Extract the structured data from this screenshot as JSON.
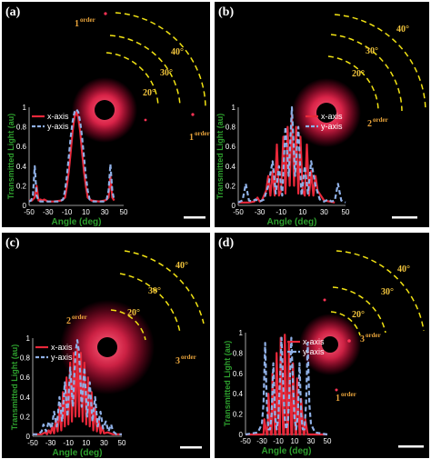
{
  "colors": {
    "x_series": "#e8283a",
    "y_series": "#8fb0e6",
    "axis_text": "#2ea02e",
    "arc": "#f2e313",
    "order_label": "#e7a33b",
    "glow": "#ff3355"
  },
  "panels": [
    {
      "label": "(a)",
      "angle_labels": [
        "40°",
        "30°",
        "20°"
      ],
      "order_labels": [
        {
          "num": "1",
          "sup": "order"
        },
        {
          "num": "1",
          "sup": "order"
        }
      ],
      "legend": [
        "x-axis",
        "y-axis"
      ],
      "ylabel": "Transmitted Light (au)",
      "xlabel": "Angle (deg)",
      "xticks": [
        "-50",
        "-30",
        "-10",
        "10",
        "30",
        "50"
      ],
      "yticks": [
        "0",
        "0.2",
        "0.4",
        "0.6",
        "0.8",
        "1"
      ]
    },
    {
      "label": "(b)",
      "angle_labels": [
        "40°",
        "30°",
        "20°"
      ],
      "order_labels": [
        {
          "num": "2",
          "sup": "order"
        }
      ],
      "legend": [
        "x-axis",
        "y-axis"
      ],
      "ylabel": "Transmitted Light (au)",
      "xlabel": "Angle (deg)",
      "xticks": [
        "-50",
        "-30",
        "-10",
        "10",
        "30",
        "50"
      ],
      "yticks": [
        "0",
        "0.2",
        "0.4",
        "0.6",
        "0.8",
        "1"
      ]
    },
    {
      "label": "(c)",
      "angle_labels": [
        "40°",
        "30°",
        "20°"
      ],
      "order_labels": [
        {
          "num": "2",
          "sup": "order"
        },
        {
          "num": "3",
          "sup": "order"
        }
      ],
      "legend": [
        "x-axis",
        "y-axis"
      ],
      "ylabel": "Transmitted Light (au)",
      "xlabel": "Angle (deg)",
      "xticks": [
        "-50",
        "-30",
        "-10",
        "10",
        "30",
        "50"
      ],
      "yticks": [
        "0",
        "0.2",
        "0.4",
        "0.6",
        "0.8",
        "1"
      ]
    },
    {
      "label": "(d)",
      "angle_labels": [
        "40°",
        "30°",
        "20°"
      ],
      "order_labels": [
        {
          "num": "3",
          "sup": "order"
        },
        {
          "num": "1",
          "sup": "order"
        }
      ],
      "legend": [
        "x-axis",
        "y-axis"
      ],
      "ylabel": "Transmitted Light (au)",
      "xlabel": "Angle (deg)",
      "xticks": [
        "-50",
        "-30",
        "-10",
        "10",
        "30",
        "50"
      ],
      "yticks": [
        "0",
        "0.2",
        "0.4",
        "0.6",
        "0.8",
        "1"
      ]
    }
  ],
  "chart_data": [
    {
      "type": "line",
      "panel": "(a)",
      "xlabel": "Angle (deg)",
      "ylabel": "Transmitted Light (au)",
      "xlim": [
        -50,
        50
      ],
      "ylim": [
        0,
        1
      ],
      "legend_placement": "top-left",
      "series": [
        {
          "name": "x-axis",
          "x": [
            -50,
            -47,
            -44,
            -42,
            -40,
            -38,
            -36,
            -34,
            -30,
            -24,
            -16,
            -12,
            -10,
            -8,
            -6,
            -4,
            -2,
            0,
            2,
            4,
            6,
            8,
            10,
            12,
            16,
            24,
            30,
            32,
            34,
            36,
            38,
            40
          ],
          "y": [
            0.05,
            0.05,
            0.08,
            0.2,
            0.05,
            0.06,
            0.05,
            0.06,
            0.04,
            0.04,
            0.05,
            0.08,
            0.2,
            0.35,
            0.55,
            0.75,
            0.9,
            0.95,
            0.9,
            0.75,
            0.55,
            0.35,
            0.2,
            0.08,
            0.05,
            0.04,
            0.05,
            0.06,
            0.08,
            0.3,
            0.08,
            0.05
          ]
        },
        {
          "name": "y-axis",
          "x": [
            -50,
            -48,
            -46,
            -44,
            -42,
            -40,
            -38,
            -36,
            -30,
            -24,
            -18,
            -14,
            -12,
            -10,
            -8,
            -6,
            -4,
            -2,
            0,
            2,
            4,
            6,
            8,
            10,
            12,
            14,
            18,
            24,
            30,
            32,
            34,
            36,
            38,
            40
          ],
          "y": [
            0.04,
            0.05,
            0.1,
            0.4,
            0.1,
            0.05,
            0.04,
            0.04,
            0.04,
            0.04,
            0.04,
            0.06,
            0.15,
            0.3,
            0.5,
            0.7,
            0.85,
            0.95,
            0.98,
            0.95,
            0.85,
            0.7,
            0.5,
            0.3,
            0.15,
            0.06,
            0.04,
            0.04,
            0.04,
            0.06,
            0.15,
            0.42,
            0.15,
            0.05
          ]
        }
      ]
    },
    {
      "type": "line",
      "panel": "(b)",
      "xlabel": "Angle (deg)",
      "ylabel": "Transmitted Light (au)",
      "xlim": [
        -50,
        50
      ],
      "ylim": [
        0,
        1
      ],
      "legend_placement": "top-right",
      "series": [
        {
          "name": "x-axis",
          "x": [
            -50,
            -40,
            -35,
            -32,
            -30,
            -28,
            -24,
            -22,
            -20,
            -18,
            -16,
            -14,
            -12,
            -10,
            -8,
            -6,
            -4,
            -2,
            0,
            2,
            4,
            6,
            8,
            10,
            12,
            14,
            16,
            18,
            20,
            22,
            24,
            30,
            35,
            40
          ],
          "y": [
            0.03,
            0.03,
            0.04,
            0.08,
            0.04,
            0.05,
            0.15,
            0.3,
            0.1,
            0.35,
            0.1,
            0.62,
            0.1,
            0.15,
            0.7,
            0.12,
            0.8,
            0.2,
            0.92,
            0.2,
            0.8,
            0.12,
            0.7,
            0.15,
            0.1,
            0.62,
            0.1,
            0.35,
            0.1,
            0.3,
            0.15,
            0.05,
            0.04,
            0.03
          ]
        },
        {
          "name": "y-axis",
          "x": [
            -50,
            -46,
            -43,
            -40,
            -37,
            -34,
            -30,
            -26,
            -22,
            -18,
            -15,
            -12,
            -9,
            -6,
            -3,
            0,
            3,
            6,
            9,
            12,
            15,
            18,
            22,
            26,
            30,
            34,
            37,
            40,
            43,
            46,
            50
          ],
          "y": [
            0.03,
            0.05,
            0.22,
            0.05,
            0.04,
            0.06,
            0.04,
            0.06,
            0.2,
            0.45,
            0.12,
            0.4,
            0.1,
            0.8,
            0.3,
            1.0,
            0.3,
            0.8,
            0.1,
            0.4,
            0.12,
            0.45,
            0.2,
            0.06,
            0.04,
            0.06,
            0.04,
            0.05,
            0.22,
            0.05,
            0.03
          ]
        }
      ]
    },
    {
      "type": "line",
      "panel": "(c)",
      "xlabel": "Angle (deg)",
      "ylabel": "Transmitted Light (au)",
      "xlim": [
        -50,
        50
      ],
      "ylim": [
        0,
        1
      ],
      "legend_placement": "top-left",
      "series": [
        {
          "name": "x-axis",
          "x": [
            -50,
            -40,
            -36,
            -34,
            -32,
            -30,
            -28,
            -26,
            -24,
            -22,
            -20,
            -18,
            -16,
            -14,
            -12,
            -10,
            -8,
            -6,
            -4,
            -2,
            0,
            2,
            4,
            6,
            8,
            10,
            12,
            14,
            16,
            18,
            20,
            22,
            24,
            26,
            28,
            30,
            34,
            40,
            50
          ],
          "y": [
            0.02,
            0.02,
            0.04,
            0.02,
            0.06,
            0.03,
            0.1,
            0.03,
            0.18,
            0.05,
            0.3,
            0.06,
            0.45,
            0.1,
            0.6,
            0.12,
            0.75,
            0.15,
            0.85,
            0.2,
            0.9,
            0.2,
            0.85,
            0.15,
            0.75,
            0.12,
            0.6,
            0.1,
            0.45,
            0.06,
            0.3,
            0.05,
            0.18,
            0.03,
            0.1,
            0.03,
            0.04,
            0.02,
            0.02
          ]
        },
        {
          "name": "y-axis",
          "x": [
            -50,
            -44,
            -40,
            -38,
            -35,
            -32,
            -29,
            -26,
            -23,
            -20,
            -17,
            -14,
            -11,
            -8,
            -5,
            -2,
            0,
            2,
            5,
            8,
            11,
            14,
            17,
            20,
            23,
            26,
            29,
            32,
            35,
            38,
            40,
            44,
            50
          ],
          "y": [
            0.02,
            0.02,
            0.05,
            0.12,
            0.05,
            0.15,
            0.08,
            0.25,
            0.1,
            0.4,
            0.15,
            0.55,
            0.2,
            0.7,
            0.3,
            0.85,
            0.98,
            0.85,
            0.3,
            0.7,
            0.2,
            0.55,
            0.15,
            0.4,
            0.1,
            0.25,
            0.08,
            0.15,
            0.05,
            0.12,
            0.05,
            0.02,
            0.02
          ]
        }
      ]
    },
    {
      "type": "line",
      "panel": "(d)",
      "xlabel": "Angle (deg)",
      "ylabel": "Transmitted Light (au)",
      "xlim": [
        -50,
        50
      ],
      "ylim": [
        0,
        1
      ],
      "legend_placement": "top-right",
      "series": [
        {
          "name": "x-axis",
          "x": [
            -50,
            -30,
            -28,
            -27,
            -24,
            -23,
            -22,
            -19,
            -18,
            -17,
            -14,
            -13,
            -12,
            -9,
            -8,
            -7,
            -4,
            -3,
            -2,
            1,
            2,
            3,
            6,
            7,
            8,
            11,
            12,
            13,
            16,
            17,
            18,
            21,
            22,
            23,
            26,
            27,
            28,
            50
          ],
          "y": [
            0.0,
            0.0,
            0.0,
            0.15,
            0.0,
            0.0,
            0.4,
            0.0,
            0.0,
            0.6,
            0.0,
            0.0,
            0.8,
            0.0,
            0.0,
            0.95,
            0.0,
            0.0,
            0.98,
            0.0,
            0.0,
            0.9,
            0.0,
            0.0,
            0.7,
            0.0,
            0.0,
            0.55,
            0.0,
            0.0,
            0.35,
            0.0,
            0.0,
            0.15,
            0.0,
            0.0,
            0.0,
            0.0
          ]
        },
        {
          "name": "y-axis",
          "x": [
            -50,
            -35,
            -30,
            -28,
            -26,
            -24,
            -22,
            -20,
            -18,
            -16,
            -14,
            -12,
            -10,
            -8,
            -6,
            -4,
            -2,
            0,
            2,
            4,
            6,
            8,
            10,
            12,
            14,
            16,
            18,
            20,
            22,
            24,
            26,
            28,
            30,
            35,
            50
          ],
          "y": [
            0.0,
            0.02,
            0.1,
            0.3,
            0.9,
            0.3,
            0.05,
            0.05,
            0.2,
            0.7,
            0.2,
            0.05,
            0.15,
            0.5,
            0.95,
            0.5,
            0.15,
            0.05,
            0.15,
            0.5,
            0.95,
            0.5,
            0.15,
            0.05,
            0.2,
            0.7,
            0.2,
            0.05,
            0.05,
            0.3,
            0.9,
            0.3,
            0.1,
            0.02,
            0.0
          ]
        }
      ]
    }
  ]
}
